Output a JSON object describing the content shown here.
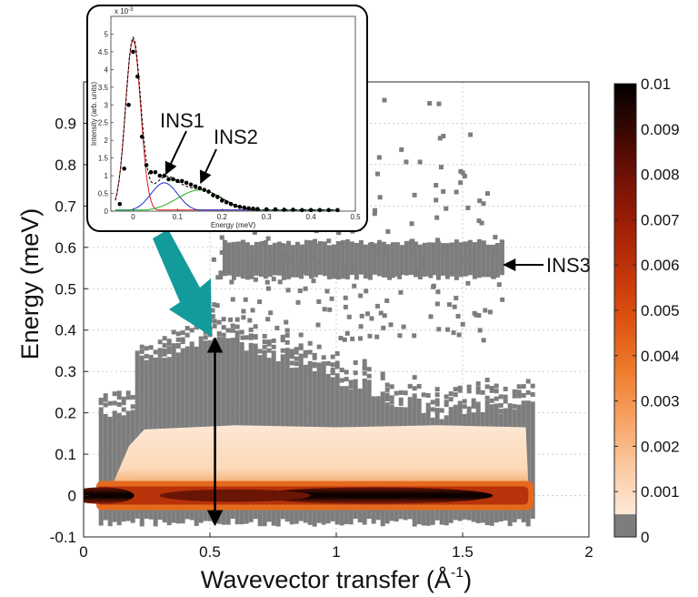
{
  "chart_data": [
    {
      "type": "heatmap",
      "title": "",
      "xlabel": "Wavevector transfer (Å-1)",
      "xlabel_parts": {
        "main": "Wavevector transfer (Å",
        "sup": "-1",
        "close": ")"
      },
      "ylabel": "Energy (meV)",
      "xlim": [
        0,
        2
      ],
      "ylim": [
        -0.1,
        1.0
      ],
      "xticks": [
        "0",
        "0.5",
        "1",
        "1.5",
        "2"
      ],
      "xtick_values": [
        0,
        0.5,
        1,
        1.5,
        2
      ],
      "yticks": [
        "-0.1",
        "0",
        "0.1",
        "0.2",
        "0.3",
        "0.4",
        "0.5",
        "0.6",
        "0.7",
        "0.8",
        "0.9"
      ],
      "ytick_values": [
        -0.1,
        0,
        0.1,
        0.2,
        0.3,
        0.4,
        0.5,
        0.6,
        0.7,
        0.8,
        0.9
      ],
      "grid": true,
      "colorbar": {
        "range": [
          0,
          0.01
        ],
        "ticks": [
          "0",
          "0.001",
          "0.002",
          "0.003",
          "0.004",
          "0.005",
          "0.006",
          "0.007",
          "0.008",
          "0.009",
          "0.01"
        ],
        "tick_values": [
          0,
          0.001,
          0.002,
          0.003,
          0.004,
          0.005,
          0.006,
          0.007,
          0.008,
          0.009,
          0.01
        ],
        "colormap": [
          "#7d7d7d",
          "#fde9d8",
          "#fbc9a0",
          "#f6a262",
          "#ee7c2c",
          "#de5512",
          "#c3360a",
          "#a01f06",
          "#731204",
          "#3a0702",
          "#000000"
        ]
      },
      "regions": [
        {
          "kind": "elastic-line",
          "q_range": [
            0.05,
            1.78
          ],
          "energy_range": [
            -0.03,
            0.03
          ],
          "level": "0.006–0.01"
        },
        {
          "kind": "quasielastic",
          "q_range": [
            0.1,
            1.75
          ],
          "energy_range": [
            0.03,
            0.17
          ],
          "level": "0.0005–0.001"
        },
        {
          "kind": "low-intensity",
          "q_range": [
            0.05,
            1.78
          ],
          "energy_range": [
            -0.1,
            0.38
          ],
          "level": "0"
        },
        {
          "kind": "INS3 band",
          "q_range": [
            0.55,
            1.65
          ],
          "energy_range": [
            0.52,
            0.62
          ],
          "level": "0"
        }
      ],
      "annotations": [
        {
          "text": "INS3",
          "points_to": {
            "x": 1.65,
            "y": 0.56
          }
        },
        {
          "text": "",
          "kind": "double-arrow",
          "x": 0.52,
          "y_from": -0.07,
          "y_to": 0.38
        }
      ]
    },
    {
      "type": "line",
      "role": "inset",
      "title": "",
      "xlabel": "Energy (meV)",
      "ylabel": "Intensity (arb. units)",
      "y_scale_label": "x 10-3",
      "y_scale_parts": {
        "main": "x 10",
        "sup": "-3"
      },
      "xlim": [
        -0.05,
        0.5
      ],
      "ylim": [
        0,
        5.5
      ],
      "xticks": [
        "0",
        "0.1",
        "0.2",
        "0.3",
        "0.4",
        "0.5"
      ],
      "xtick_values": [
        0,
        0.1,
        0.2,
        0.3,
        0.4,
        0.5
      ],
      "yticks": [
        "0",
        "0.5",
        "1",
        "1.5",
        "2",
        "2.5",
        "3",
        "3.5",
        "4",
        "4.5",
        "5"
      ],
      "ytick_values": [
        0,
        0.5,
        1,
        1.5,
        2,
        2.5,
        3,
        3.5,
        4,
        4.5,
        5
      ],
      "points": {
        "x": [
          -0.03,
          -0.02,
          -0.01,
          0.0,
          0.01,
          0.02,
          0.03,
          0.04,
          0.05,
          0.06,
          0.07,
          0.08,
          0.09,
          0.1,
          0.11,
          0.12,
          0.13,
          0.14,
          0.15,
          0.16,
          0.17,
          0.18,
          0.19,
          0.2,
          0.21,
          0.22,
          0.23,
          0.24,
          0.25,
          0.26,
          0.27,
          0.28,
          0.3,
          0.32,
          0.34,
          0.36,
          0.38,
          0.4,
          0.42,
          0.44,
          0.46
        ],
        "y": [
          0.2,
          1.2,
          3.0,
          4.5,
          3.8,
          2.1,
          1.3,
          1.1,
          1.1,
          1.0,
          1.0,
          0.9,
          0.9,
          0.85,
          0.85,
          0.8,
          0.75,
          0.7,
          0.65,
          0.6,
          0.55,
          0.45,
          0.4,
          0.3,
          0.25,
          0.2,
          0.15,
          0.12,
          0.1,
          0.08,
          0.07,
          0.06,
          0.05,
          0.05,
          0.04,
          0.04,
          0.03,
          0.03,
          0.03,
          0.03,
          0.03
        ]
      },
      "series": [
        {
          "color": "#d62020",
          "peak": {
            "x": 0.0,
            "y": 4.85
          },
          "width": 0.017
        },
        {
          "color": "#2030d0",
          "peak": {
            "x": 0.07,
            "y": 0.8
          },
          "width": 0.03
        },
        {
          "color": "#20b020",
          "peak": {
            "x": 0.15,
            "y": 0.6
          },
          "width": 0.05
        },
        {
          "color": "#000000",
          "style": "dashed",
          "role": "total fit"
        }
      ],
      "annotations": [
        {
          "text": "INS1",
          "points_to": {
            "x": 0.07,
            "y": 0.9
          }
        },
        {
          "text": "INS2",
          "points_to": {
            "x": 0.14,
            "y": 0.65
          }
        }
      ]
    }
  ],
  "arrow_color": "#139b9b"
}
